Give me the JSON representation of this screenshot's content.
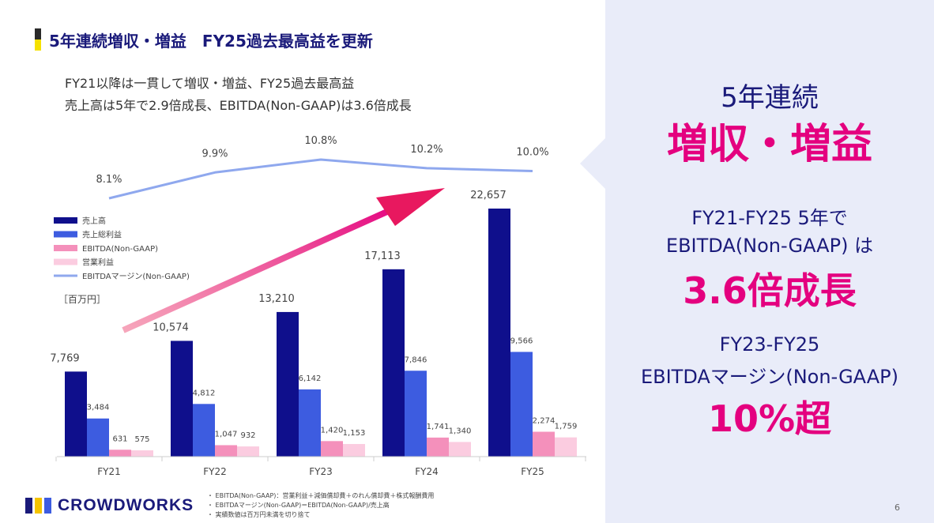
{
  "header": {
    "title": "5年連続増収・増益　FY25過去最高益を更新"
  },
  "subtitle": {
    "line1": "FY21以降は一貫して増収・増益、FY25過去最高益",
    "line2": "売上高は5年で2.9倍成長、EBITDA(Non-GAAP)は3.6倍成長"
  },
  "chart_data": {
    "type": "bar",
    "categories": [
      "FY21",
      "FY22",
      "FY23",
      "FY24",
      "FY25"
    ],
    "unit_label": "［百万円］",
    "series": [
      {
        "name": "売上高",
        "values": [
          7769,
          10574,
          13210,
          17113,
          22657
        ],
        "labels": [
          "7,769",
          "10,574",
          "13,210",
          "17,113",
          "22,657"
        ],
        "color": "#0f0f8c"
      },
      {
        "name": "売上総利益",
        "values": [
          3484,
          4812,
          6142,
          7846,
          9566
        ],
        "labels": [
          "3,484",
          "4,812",
          "6,142",
          "7,846",
          "9,566"
        ],
        "color": "#3d5ce0"
      },
      {
        "name": "EBITDA(Non-GAAP)",
        "values": [
          631,
          1047,
          1420,
          1741,
          2274
        ],
        "labels": [
          "631",
          "1,047",
          "1,420",
          "1,741",
          "2,274"
        ],
        "color": "#f490bb"
      },
      {
        "name": "営業利益",
        "values": [
          575,
          932,
          1153,
          1340,
          1759
        ],
        "labels": [
          "575",
          "932",
          "1,153",
          "1,340",
          "1,759"
        ],
        "color": "#fbcce0"
      }
    ],
    "line_series": {
      "name": "EBITDAマージン(Non-GAAP)",
      "values": [
        8.1,
        9.9,
        10.8,
        10.2,
        10.0
      ],
      "labels": [
        "8.1%",
        "9.9%",
        "10.8%",
        "10.2%",
        "10.0%"
      ],
      "color": "#8fa8ee"
    },
    "ylim": [
      0,
      24000
    ],
    "legend_position": "left",
    "grid": false
  },
  "panel": {
    "line1": "5年連続",
    "line2": "増収・増益",
    "line3": "FY21-FY25 5年で",
    "line4": "EBITDA(Non-GAAP) は",
    "line5": "3.6倍成長",
    "line6": "FY23-FY25",
    "line7": "EBITDAマージン(Non-GAAP)",
    "line8": "10%超"
  },
  "footer": {
    "logo_text": "CROWDWORKS",
    "notes": [
      "・ EBITDA(Non-GAAP)：営業利益＋減価償却費＋のれん償却費＋株式報酬費用",
      "・ EBITDAマージン(Non-GAAP)＝EBITDA(Non-GAAP)/売上高",
      "・ 実績数値は百万円未満を切り捨て"
    ],
    "page_number": "6"
  },
  "colors": {
    "accent_pink": "#e4007f",
    "navy": "#1a1a7a",
    "panel_bg": "#e9ecf9",
    "arrow": "#e8185f"
  }
}
